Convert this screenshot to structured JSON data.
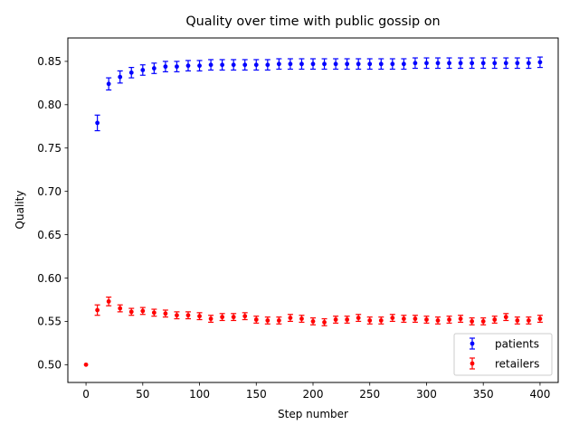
{
  "chart_data": {
    "type": "scatter",
    "title": "Quality over time with public gossip on",
    "xlabel": "Step number",
    "ylabel": "Quality",
    "xlim": [
      -16,
      416
    ],
    "ylim": [
      0.4795,
      0.877
    ],
    "xticks": [
      0,
      50,
      100,
      150,
      200,
      250,
      300,
      350,
      400
    ],
    "yticks": [
      0.5,
      0.55,
      0.6,
      0.65,
      0.7,
      0.75,
      0.8,
      0.85
    ],
    "xtick_labels": [
      "0",
      "50",
      "100",
      "150",
      "200",
      "250",
      "300",
      "350",
      "400"
    ],
    "ytick_labels": [
      "0.50",
      "0.55",
      "0.60",
      "0.65",
      "0.70",
      "0.75",
      "0.80",
      "0.85"
    ],
    "grid": false,
    "legend_position": "bottom-right",
    "series": [
      {
        "name": "patients",
        "color": "#0000ff",
        "marker": "circle",
        "x": [
          10,
          20,
          30,
          40,
          50,
          60,
          70,
          80,
          90,
          100,
          110,
          120,
          130,
          140,
          150,
          160,
          170,
          180,
          190,
          200,
          210,
          220,
          230,
          240,
          250,
          260,
          270,
          280,
          290,
          300,
          310,
          320,
          330,
          340,
          350,
          360,
          370,
          380,
          390,
          400
        ],
        "y": [
          0.779,
          0.824,
          0.832,
          0.837,
          0.84,
          0.842,
          0.844,
          0.844,
          0.845,
          0.845,
          0.846,
          0.846,
          0.846,
          0.846,
          0.846,
          0.846,
          0.847,
          0.847,
          0.847,
          0.847,
          0.847,
          0.847,
          0.847,
          0.847,
          0.847,
          0.847,
          0.847,
          0.847,
          0.848,
          0.848,
          0.848,
          0.848,
          0.848,
          0.848,
          0.848,
          0.848,
          0.848,
          0.848,
          0.848,
          0.849
        ],
        "err": [
          0.009,
          0.007,
          0.007,
          0.006,
          0.006,
          0.006,
          0.006,
          0.006,
          0.006,
          0.006,
          0.006,
          0.006,
          0.006,
          0.006,
          0.006,
          0.006,
          0.006,
          0.006,
          0.006,
          0.006,
          0.006,
          0.006,
          0.006,
          0.006,
          0.006,
          0.006,
          0.006,
          0.006,
          0.006,
          0.006,
          0.006,
          0.006,
          0.006,
          0.006,
          0.006,
          0.006,
          0.006,
          0.006,
          0.006,
          0.006
        ]
      },
      {
        "name": "retailers",
        "color": "#ff0000",
        "marker": "circle",
        "x": [
          0,
          10,
          20,
          30,
          40,
          50,
          60,
          70,
          80,
          90,
          100,
          110,
          120,
          130,
          140,
          150,
          160,
          170,
          180,
          190,
          200,
          210,
          220,
          230,
          240,
          250,
          260,
          270,
          280,
          290,
          300,
          310,
          320,
          330,
          340,
          350,
          360,
          370,
          380,
          390,
          400
        ],
        "y": [
          0.5,
          0.563,
          0.573,
          0.565,
          0.561,
          0.562,
          0.56,
          0.559,
          0.557,
          0.557,
          0.556,
          0.553,
          0.555,
          0.555,
          0.556,
          0.552,
          0.551,
          0.551,
          0.554,
          0.553,
          0.55,
          0.549,
          0.552,
          0.552,
          0.554,
          0.551,
          0.551,
          0.554,
          0.553,
          0.553,
          0.552,
          0.551,
          0.552,
          0.553,
          0.55,
          0.55,
          0.552,
          0.555,
          0.551,
          0.551,
          0.553
        ],
        "err": [
          0.0,
          0.006,
          0.005,
          0.004,
          0.004,
          0.004,
          0.004,
          0.004,
          0.004,
          0.004,
          0.004,
          0.004,
          0.004,
          0.004,
          0.004,
          0.004,
          0.004,
          0.004,
          0.004,
          0.004,
          0.004,
          0.004,
          0.004,
          0.004,
          0.004,
          0.004,
          0.004,
          0.004,
          0.004,
          0.004,
          0.004,
          0.004,
          0.004,
          0.004,
          0.004,
          0.004,
          0.004,
          0.004,
          0.004,
          0.004,
          0.004
        ]
      }
    ]
  }
}
